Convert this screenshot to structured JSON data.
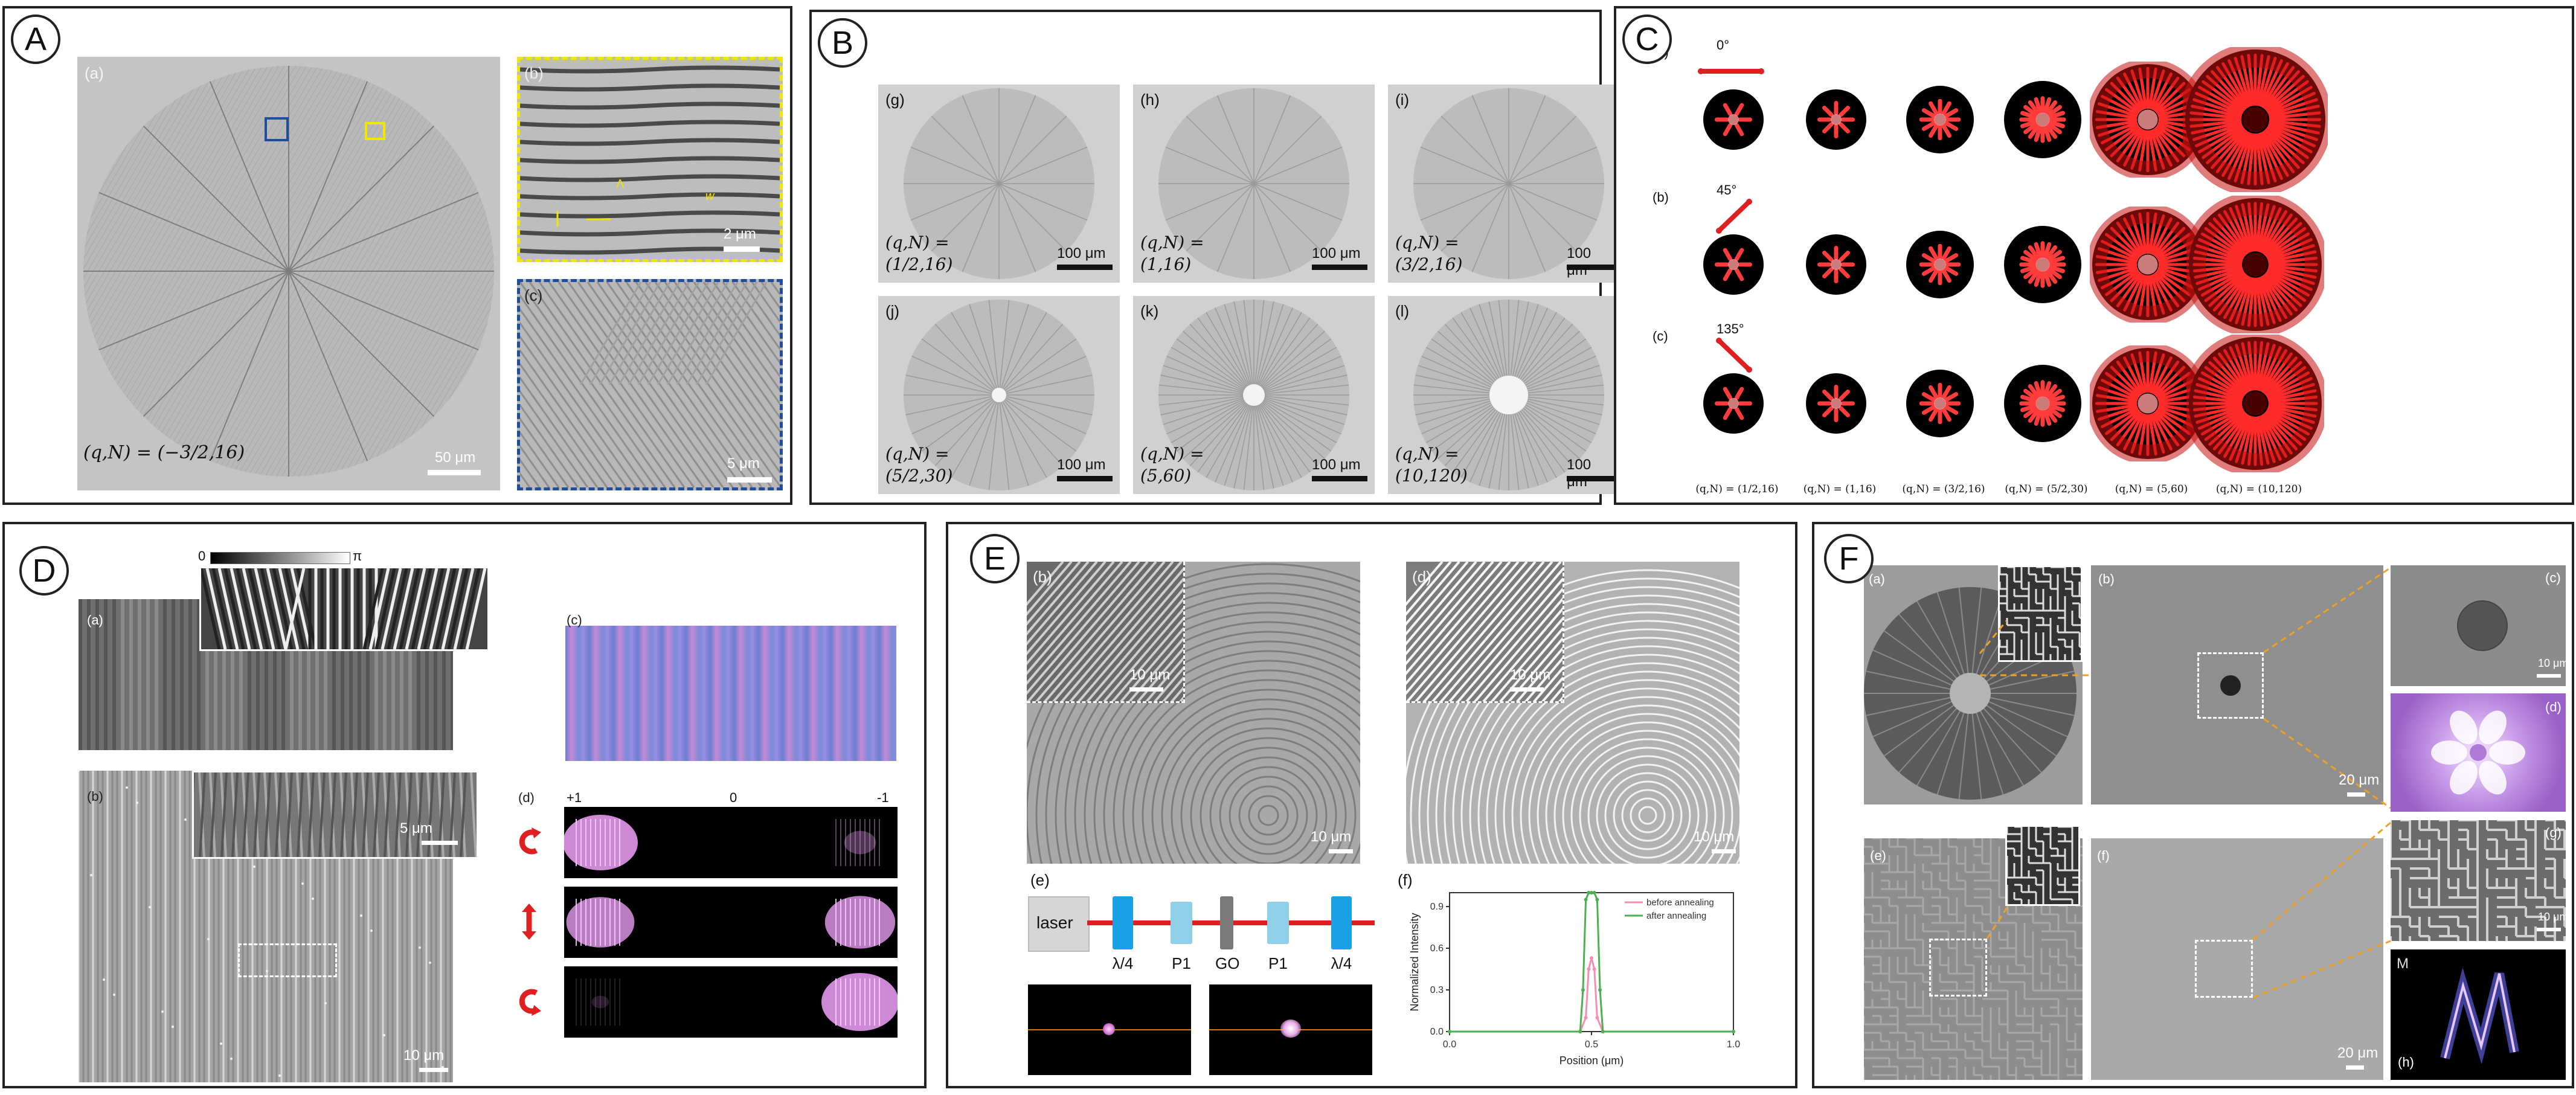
{
  "panels": {
    "A": {
      "badge": "A",
      "sub_a": "(a)",
      "sub_b": "(b)",
      "sub_c": "(c)",
      "q_label": "(q,N) = (−3/2,16)",
      "scale_a": "50 μm",
      "scale_b": "2 μm",
      "scale_c": "5 μm",
      "lambda_label": "Λ",
      "w_label": "w"
    },
    "B": {
      "badge": "B",
      "cells": [
        {
          "sub": "(g)",
          "q": "(q,N) =\n(1/2,16)",
          "scale": "100 μm"
        },
        {
          "sub": "(h)",
          "q": "(q,N) =\n(1,16)",
          "scale": "100 μm"
        },
        {
          "sub": "(i)",
          "q": "(q,N) =\n(3/2,16)",
          "scale": "100 μm"
        },
        {
          "sub": "(j)",
          "q": "(q,N) =\n(5/2,30)",
          "scale": "100 μm"
        },
        {
          "sub": "(k)",
          "q": "(q,N) =\n(5,60)",
          "scale": "100 μm"
        },
        {
          "sub": "(l)",
          "q": "(q,N) =\n(10,120)",
          "scale": "100 μm"
        }
      ]
    },
    "C": {
      "badge": "C",
      "rows": [
        {
          "sub": "(a)",
          "angle": "0°"
        },
        {
          "sub": "(b)",
          "angle": "45°"
        },
        {
          "sub": "(c)",
          "angle": "135°"
        }
      ],
      "columns": [
        "(q,N) = (1/2,16)",
        "(q,N) = (1,16)",
        "(q,N) = (3/2,16)",
        "(q,N) = (5/2,30)",
        "(q,N) = (5,60)",
        "(q,N) = (10,120)"
      ]
    },
    "D": {
      "badge": "D",
      "sub_a": "(a)",
      "sub_b": "(b)",
      "sub_c": "(c)",
      "sub_d": "(d)",
      "colorbar_min": "0",
      "colorbar_max": "π",
      "scale_inset": "5 μm",
      "scale_b": "10 μm",
      "order_plus": "+1",
      "order_zero": "0",
      "order_minus": "-1"
    },
    "E": {
      "badge": "E",
      "sub_b": "(b)",
      "sub_d": "(d)",
      "sub_e": "(e)",
      "sub_f": "(f)",
      "scale_inset_b": "10 μm",
      "scale_b": "10 μm",
      "scale_inset_d": "10 μm",
      "scale_d": "10 μm",
      "laser": "laser",
      "optics": [
        "λ/4",
        "P1",
        "GO",
        "P1",
        "λ/4"
      ],
      "chart_title_y": "Normalized Intensity",
      "chart_title_x": "Position (μm)",
      "legend": [
        "before annealing",
        "after annealing"
      ]
    },
    "F": {
      "badge": "F",
      "sub_a": "(a)",
      "sub_b": "(b)",
      "sub_c": "(c)",
      "sub_d": "(d)",
      "sub_e": "(e)",
      "sub_f": "(f)",
      "sub_g": "(g)",
      "sub_h": "(h)",
      "scale_b": "20 μm",
      "scale_c": "10 μm",
      "scale_f": "20 μm",
      "scale_g": "10 μm",
      "glyph_h": "M"
    }
  },
  "colors": {
    "accent_yellow": "#f2e600",
    "accent_blue": "#1f4e9c",
    "arrow_red": "#e02020",
    "dashed_orange": "#f0a020",
    "curve_before": "#f48fb1",
    "curve_after": "#4caf50"
  },
  "chart_data": {
    "type": "line",
    "xlabel": "Position (μm)",
    "ylabel": "Normalized Intensity",
    "xlim": [
      0.0,
      1.0
    ],
    "ylim": [
      0.0,
      1.0
    ],
    "xticks": [
      "0.0",
      "0.5",
      "1.0"
    ],
    "yticks": [
      "0.0",
      "0.3",
      "0.6",
      "0.9"
    ],
    "legend_position": "top-right",
    "series": [
      {
        "name": "before annealing",
        "color": "#f48fb1",
        "x": [
          0.0,
          0.46,
          0.48,
          0.49,
          0.5,
          0.51,
          0.52,
          0.54,
          1.0
        ],
        "y": [
          0.0,
          0.0,
          0.1,
          0.45,
          0.53,
          0.45,
          0.1,
          0.0,
          0.0
        ]
      },
      {
        "name": "after annealing",
        "color": "#4caf50",
        "x": [
          0.0,
          0.46,
          0.47,
          0.48,
          0.49,
          0.5,
          0.51,
          0.52,
          0.53,
          0.54,
          1.0
        ],
        "y": [
          0.0,
          0.0,
          0.3,
          0.95,
          1.0,
          1.0,
          1.0,
          0.95,
          0.3,
          0.0,
          0.0
        ]
      }
    ]
  }
}
